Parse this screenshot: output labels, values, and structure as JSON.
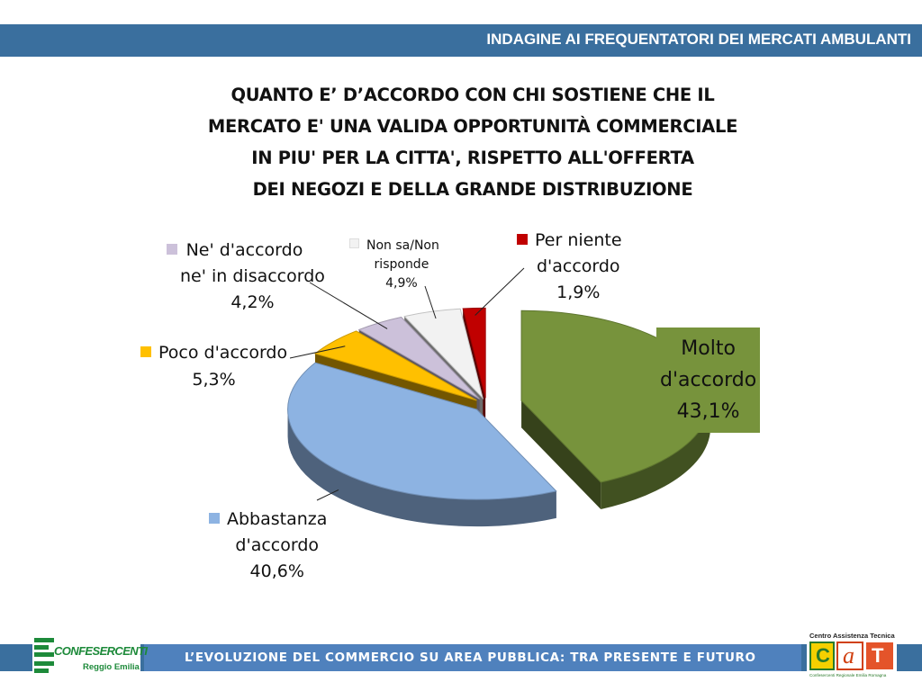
{
  "header": {
    "title": "INDAGINE AI FREQUENTATORI DEI MERCATI AMBULANTI"
  },
  "question": {
    "lines": [
      "QUANTO E’ D’ACCORDO CON CHI SOSTIENE CHE IL",
      "MERCATO E' UNA VALIDA OPPORTUNITÀ COMMERCIALE",
      "IN PIU' PER LA CITTA', RISPETTO ALL'OFFERTA",
      "DEI NEGOZI E DELLA GRANDE DISTRIBUZIONE"
    ]
  },
  "chart_data": {
    "type": "pie",
    "title": "QUANTO E’ D’ACCORDO CON CHI SOSTIENE CHE IL MERCATO E' UNA VALIDA OPPORTUNITÀ COMMERCIALE IN PIU' PER LA CITTA', RISPETTO ALL'OFFERTA DEI NEGOZI E DELLA GRANDE DISTRIBUZIONE",
    "slices": [
      {
        "key": "molto",
        "label_lines": [
          "Molto",
          "d'accordo"
        ],
        "value_text": "43,1%",
        "value": 43.1,
        "color": "#77933c",
        "exploded": true
      },
      {
        "key": "abbastanza",
        "label_lines": [
          "Abbastanza",
          "d'accordo"
        ],
        "value_text": "40,6%",
        "value": 40.6,
        "color": "#8db3e2"
      },
      {
        "key": "poco",
        "label_lines": [
          "Poco d'accordo"
        ],
        "value_text": "5,3%",
        "value": 5.3,
        "color": "#ffc000"
      },
      {
        "key": "ne",
        "label_lines": [
          "Ne' d'accordo",
          "ne' in disaccordo"
        ],
        "value_text": "4,2%",
        "value": 4.2,
        "color": "#ccc1da"
      },
      {
        "key": "nonsa",
        "label_lines": [
          "Non sa/Non",
          "risponde"
        ],
        "value_text": "4,9%",
        "value": 4.9,
        "color": "#f2f2f2"
      },
      {
        "key": "perniente",
        "label_lines": [
          "Per niente",
          "d'accordo"
        ],
        "value_text": "1,9%",
        "value": 1.9,
        "color": "#c00000"
      }
    ]
  },
  "footer": {
    "text": "L’EVOLUZIONE DEL COMMERCIO SU AREA PUBBLICA: TRA PRESENTE E FUTURO",
    "logo_left": {
      "line1": "CONFESERCENTI",
      "line2": "Reggio Emilia"
    },
    "logo_right": {
      "title": "Centro Assistenza Tecnica",
      "letters": "CAT",
      "subtitle": "Confesercenti Regionale Emilia Romagna"
    }
  }
}
